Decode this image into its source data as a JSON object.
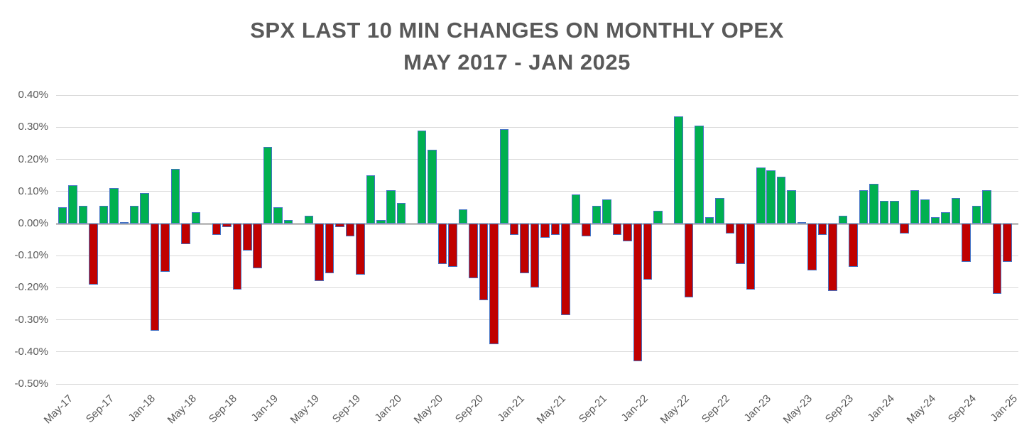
{
  "chart_data": {
    "type": "bar",
    "title": "SPX LAST 10 MIN CHANGES ON MONTHLY OPEX",
    "subtitle": "MAY 2017 - JAN 2025",
    "unit": "%",
    "grid": true,
    "legend": false,
    "ylim": [
      -0.5,
      0.4
    ],
    "categories": [
      "May-17",
      "Jun-17",
      "Jul-17",
      "Aug-17",
      "Sep-17",
      "Oct-17",
      "Nov-17",
      "Dec-17",
      "Jan-18",
      "Feb-18",
      "Mar-18",
      "Apr-18",
      "May-18",
      "Jun-18",
      "Jul-18",
      "Aug-18",
      "Sep-18",
      "Oct-18",
      "Nov-18",
      "Dec-18",
      "Jan-19",
      "Feb-19",
      "Mar-19",
      "Apr-19",
      "May-19",
      "Jun-19",
      "Jul-19",
      "Aug-19",
      "Sep-19",
      "Oct-19",
      "Nov-19",
      "Dec-19",
      "Jan-20",
      "Feb-20",
      "Mar-20",
      "Apr-20",
      "May-20",
      "Jun-20",
      "Jul-20",
      "Aug-20",
      "Sep-20",
      "Oct-20",
      "Nov-20",
      "Dec-20",
      "Jan-21",
      "Feb-21",
      "Mar-21",
      "Apr-21",
      "May-21",
      "Jun-21",
      "Jul-21",
      "Aug-21",
      "Sep-21",
      "Oct-21",
      "Nov-21",
      "Dec-21",
      "Jan-22",
      "Feb-22",
      "Mar-22",
      "Apr-22",
      "May-22",
      "Jun-22",
      "Jul-22",
      "Aug-22",
      "Sep-22",
      "Oct-22",
      "Nov-22",
      "Dec-22",
      "Jan-23",
      "Feb-23",
      "Mar-23",
      "Apr-23",
      "May-23",
      "Jun-23",
      "Jul-23",
      "Aug-23",
      "Sep-23",
      "Oct-23",
      "Nov-23",
      "Dec-23",
      "Jan-24",
      "Feb-24",
      "Mar-24",
      "Apr-24",
      "May-24",
      "Jun-24",
      "Jul-24",
      "Aug-24",
      "Sep-24",
      "Oct-24",
      "Nov-24",
      "Dec-24",
      "Jan-25"
    ],
    "values": [
      0.05,
      0.12,
      0.055,
      -0.19,
      0.055,
      0.11,
      0.005,
      0.055,
      0.095,
      -0.335,
      -0.15,
      0.17,
      -0.065,
      0.035,
      0,
      -0.035,
      -0.01,
      -0.205,
      -0.085,
      -0.14,
      0.24,
      0.05,
      0.01,
      0,
      0.025,
      -0.18,
      -0.155,
      -0.01,
      -0.04,
      -0.16,
      0.15,
      0.01,
      0.105,
      0.065,
      0,
      0.29,
      0.23,
      -0.125,
      -0.135,
      0.045,
      -0.17,
      -0.24,
      -0.375,
      0.295,
      -0.035,
      -0.155,
      -0.2,
      -0.045,
      -0.035,
      -0.285,
      0.09,
      -0.04,
      0.055,
      0.075,
      -0.035,
      -0.055,
      -0.43,
      -0.175,
      0.04,
      0,
      0.335,
      -0.23,
      0.305,
      0.02,
      0.08,
      -0.03,
      -0.125,
      -0.205,
      0.175,
      0.165,
      0.145,
      0.105,
      0.005,
      -0.145,
      -0.035,
      -0.21,
      0.025,
      -0.135,
      0.105,
      0.125,
      0.07,
      0.07,
      -0.03,
      0.105,
      0.075,
      0.02,
      0.035,
      0.08,
      -0.12,
      0.055,
      0.105,
      -0.22,
      -0.12
    ],
    "x_tick_every": 4,
    "x_tick_labels": [
      "May-17",
      "Sep-17",
      "Jan-18",
      "May-18",
      "Sep-18",
      "Jan-19",
      "May-19",
      "Sep-19",
      "Jan-20",
      "May-20",
      "Sep-20",
      "Jan-21",
      "May-21",
      "Sep-21",
      "Jan-22",
      "May-22",
      "Sep-22",
      "Jan-23",
      "May-23",
      "Sep-23",
      "Jan-24",
      "May-24",
      "Sep-24",
      "Jan-25"
    ],
    "yticks": [
      {
        "value": 0.4,
        "label": "0.40%"
      },
      {
        "value": 0.3,
        "label": "0.30%"
      },
      {
        "value": 0.2,
        "label": "0.20%"
      },
      {
        "value": 0.1,
        "label": "0.10%"
      },
      {
        "value": 0.0,
        "label": "0.00%"
      },
      {
        "value": -0.1,
        "label": "-0.10%"
      },
      {
        "value": -0.2,
        "label": "-0.20%"
      },
      {
        "value": -0.3,
        "label": "-0.30%"
      },
      {
        "value": -0.4,
        "label": "-0.40%"
      },
      {
        "value": -0.5,
        "label": "-0.50%"
      }
    ],
    "colors": {
      "positive": "#00B050",
      "negative": "#C00000",
      "bar_outline": "#4472C4",
      "gridline": "#D9D9D9",
      "zero_line": "#BFBFBF",
      "text": "#595959",
      "background": "#FFFFFF"
    }
  }
}
